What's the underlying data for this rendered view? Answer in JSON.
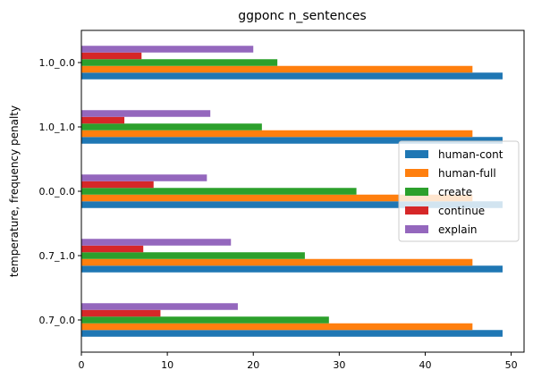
{
  "chart_data": {
    "type": "bar",
    "orientation": "horizontal",
    "title": "ggponc n_sentences",
    "xlabel": "",
    "ylabel": "temperature, frequency penalty",
    "xlim": [
      0,
      51.5
    ],
    "xticks": [
      0,
      10,
      20,
      30,
      40,
      50
    ],
    "categories": [
      "0.7_0.0",
      "0.7_1.0",
      "0.0_0.0",
      "1.0_1.0",
      "1.0_0.0"
    ],
    "series": [
      {
        "name": "human-cont",
        "color": "#1f77b4",
        "values": [
          49,
          49,
          49,
          49,
          49
        ]
      },
      {
        "name": "human-full",
        "color": "#ff7f0e",
        "values": [
          45.5,
          45.5,
          45.5,
          45.5,
          45.5
        ]
      },
      {
        "name": "create",
        "color": "#2ca02c",
        "values": [
          28.8,
          26,
          32,
          21,
          22.8
        ]
      },
      {
        "name": "continue",
        "color": "#d62728",
        "values": [
          9.2,
          7.2,
          8.4,
          5,
          7
        ]
      },
      {
        "name": "explain",
        "color": "#9467bd",
        "values": [
          18.2,
          17.4,
          14.6,
          15,
          20
        ]
      }
    ],
    "grid": false,
    "legend_position": "center-right"
  }
}
